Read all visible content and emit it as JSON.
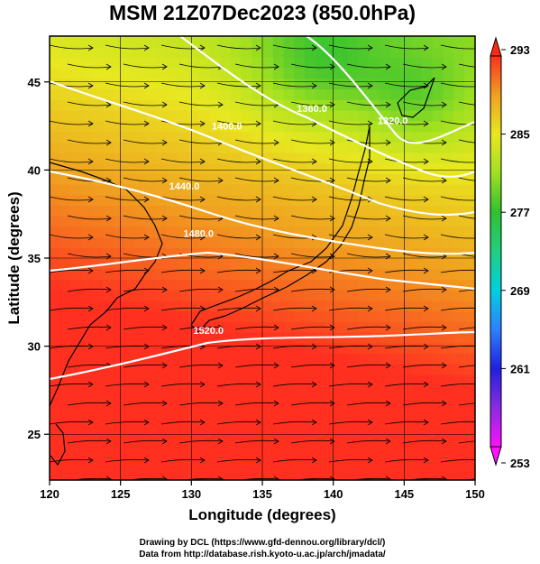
{
  "chart_data": {
    "type": "heatmap",
    "title": "MSM 21Z07Dec2023 (850.0hPa)",
    "xlabel": "Longitude (degrees)",
    "ylabel": "Latitude  (degrees)",
    "xlim": [
      120,
      150
    ],
    "ylim": [
      22.4,
      47.6
    ],
    "x_ticks": [
      120,
      125,
      130,
      135,
      140,
      145,
      150
    ],
    "y_ticks": [
      25,
      30,
      35,
      40,
      45
    ],
    "grid": true,
    "colorbar": {
      "range": [
        253,
        293
      ],
      "ticks": [
        253,
        261,
        269,
        277,
        285,
        293
      ],
      "placement": "right"
    },
    "contour_labels": [
      {
        "text": "1320.0",
        "lon": 144.2,
        "lat": 42.6
      },
      {
        "text": "1360.0",
        "lon": 138.5,
        "lat": 43.3
      },
      {
        "text": "1400.0",
        "lon": 132.5,
        "lat": 42.3
      },
      {
        "text": "1440.0",
        "lon": 129.5,
        "lat": 38.9
      },
      {
        "text": "1480.0",
        "lon": 130.5,
        "lat": 36.2
      },
      {
        "text": "1520.0",
        "lon": 131.2,
        "lat": 30.7
      }
    ]
  },
  "credits": {
    "line1": "Drawing by DCL (https://www.gfd-dennou.org/library/dcl/)",
    "line2": "Data from http://database.rish.kyoto-u.ac.jp/arch/jmadata/"
  },
  "palette": {
    "background": "#ffffff",
    "contour_color": "#ffffff",
    "stream_color": "#000000"
  }
}
